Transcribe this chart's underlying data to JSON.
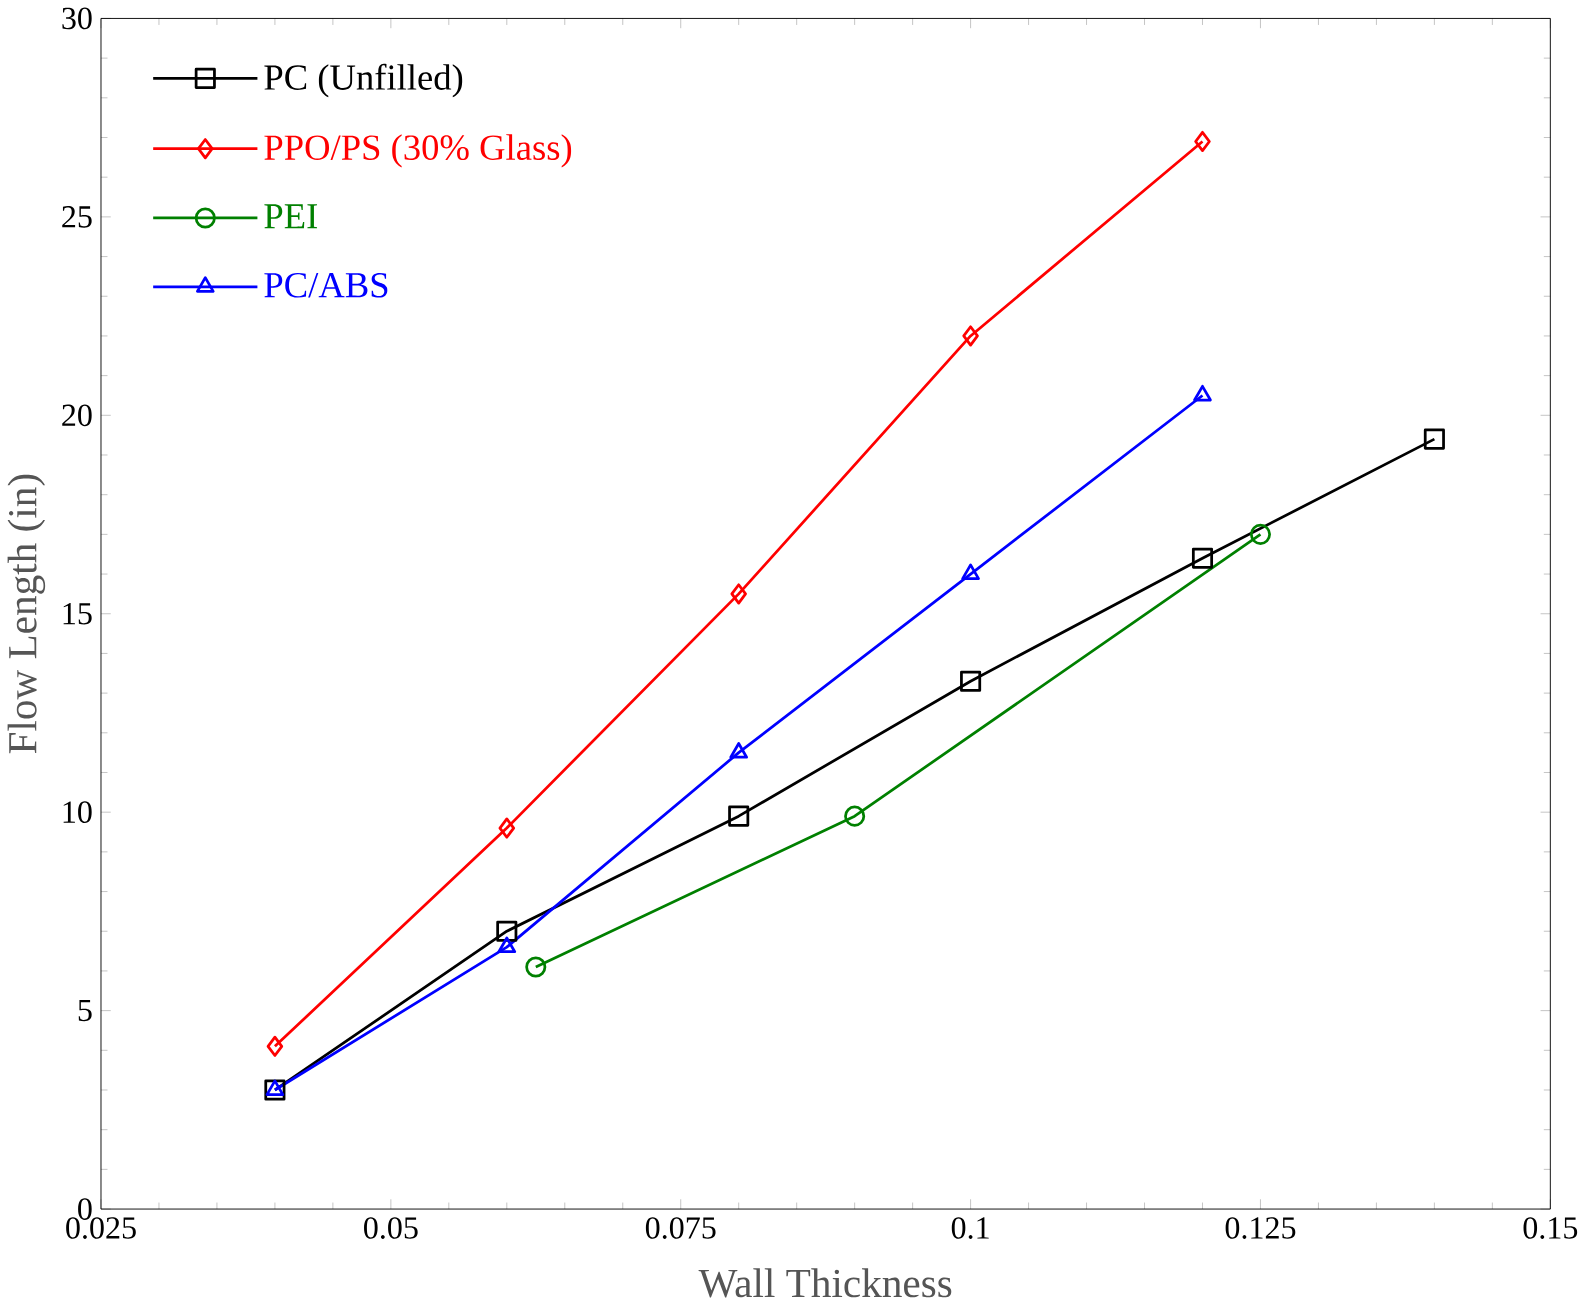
{
  "chart_data": {
    "type": "line",
    "xlabel": "Wall Thickness",
    "ylabel": "Flow Length (in)",
    "xlim": [
      0.025,
      0.15
    ],
    "xticks": [
      0.025,
      0.05,
      0.075,
      0.1,
      0.125,
      0.15
    ],
    "ylim": [
      0,
      30
    ],
    "yticks": [
      0,
      5,
      10,
      15,
      20,
      25,
      30
    ],
    "legend": "top left",
    "grid": false,
    "series": [
      {
        "name": "PC (Unfilled)",
        "color": "#000000",
        "marker": "square",
        "x": [
          0.04,
          0.06,
          0.08,
          0.1,
          0.12,
          0.14
        ],
        "values": [
          3.0,
          7.0,
          9.9,
          13.3,
          16.4,
          19.4
        ]
      },
      {
        "name": "PPO/PS (30% Glass)",
        "color": "#ff0000",
        "marker": "diamond",
        "x": [
          0.04,
          0.06,
          0.08,
          0.1,
          0.12
        ],
        "values": [
          4.1,
          9.6,
          15.5,
          22.0,
          26.9
        ]
      },
      {
        "name": "PEI",
        "color": "#008000",
        "marker": "circle",
        "x": [
          0.0625,
          0.09,
          0.125
        ],
        "values": [
          6.1,
          9.9,
          17.0
        ]
      },
      {
        "name": "PC/ABS",
        "color": "#0000ff",
        "marker": "triangle",
        "x": [
          0.04,
          0.06,
          0.08,
          0.1,
          0.12
        ],
        "values": [
          3.0,
          6.6,
          11.5,
          16.0,
          20.5
        ]
      }
    ]
  }
}
